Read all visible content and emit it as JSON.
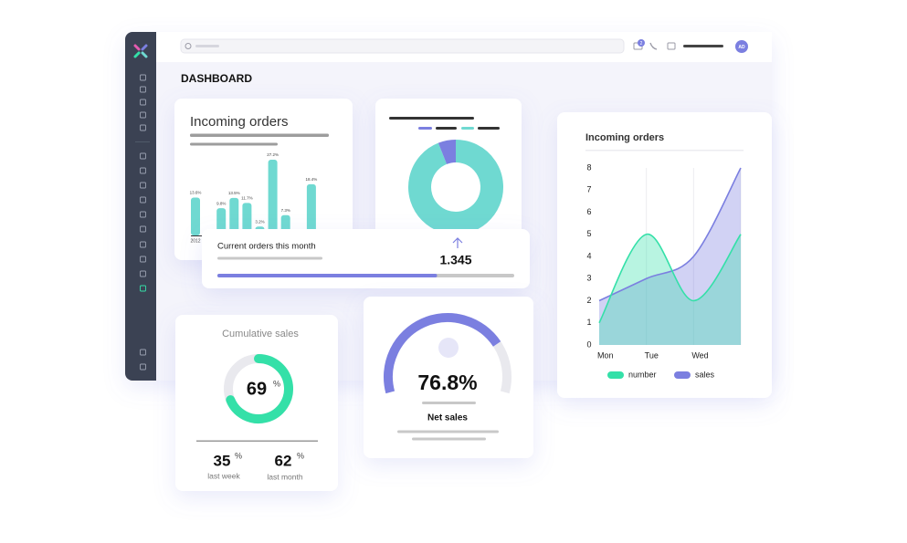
{
  "topbar": {
    "notification_count": "2",
    "avatar": "AD"
  },
  "page_title": "DASHBOARD",
  "orders_bar_card": {
    "type": "bar",
    "title": "Incoming orders",
    "categories": [
      "2012",
      null,
      null,
      null,
      null,
      null,
      null,
      null,
      null,
      null
    ],
    "values": [
      13.6,
      null,
      9.8,
      13.5,
      11.7,
      3.2,
      27.2,
      7.3,
      null,
      18.4
    ],
    "value_labels": [
      "13.6%",
      null,
      "9.8%",
      "13.5%",
      "11.7%",
      "3.2%",
      "27.2%",
      "7.3%",
      null,
      "18.4%"
    ],
    "ylim": [
      0,
      30
    ],
    "color": "#6fd9d1"
  },
  "donut_card": {
    "type": "pie",
    "values": [
      94,
      6
    ],
    "colors": [
      "#6fd9d1",
      "#7b7fe0"
    ]
  },
  "current_orders": {
    "label": "Current orders this month",
    "value": "1.345",
    "progress": 74,
    "progress_lim": [
      0,
      100
    ],
    "color": "#7b7fe0"
  },
  "line_chart": {
    "type": "line",
    "title": "Incoming orders",
    "categories": [
      "Mon",
      "Tue",
      "Wed",
      null
    ],
    "ylim": [
      0,
      8
    ],
    "yticks": [
      0,
      1,
      2,
      3,
      4,
      5,
      6,
      7,
      8
    ],
    "grid": true,
    "legend": "bottom",
    "series": [
      {
        "name": "number",
        "color": "#34e0a8",
        "values": [
          1,
          5,
          2,
          5
        ]
      },
      {
        "name": "sales",
        "color": "#7b7fe0",
        "values": [
          2,
          3,
          4,
          8
        ]
      }
    ]
  },
  "cumulative_sales": {
    "title": "Cumulative sales",
    "value": 69,
    "unit": "%",
    "ring_lim": [
      0,
      100
    ],
    "color": "#34e0a8",
    "last_week": {
      "value": 35,
      "unit": "%",
      "label": "last week"
    },
    "last_month": {
      "value": 62,
      "unit": "%",
      "label": "last month"
    }
  },
  "net_sales": {
    "value": 76.8,
    "value_label": "76.8%",
    "label": "Net sales",
    "gauge_lim": [
      0,
      100
    ],
    "color": "#7b7fe0"
  }
}
